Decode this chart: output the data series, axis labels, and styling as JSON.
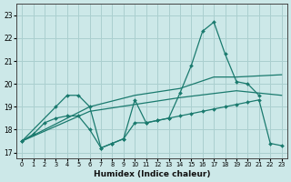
{
  "bg_color": "#cce8e8",
  "grid_color": "#aacfcf",
  "line_color": "#1a7a6e",
  "xlabel": "Humidex (Indice chaleur)",
  "xlim": [
    -0.5,
    23.5
  ],
  "ylim": [
    16.75,
    23.5
  ],
  "yticks": [
    17,
    18,
    19,
    20,
    21,
    22,
    23
  ],
  "xticks": [
    0,
    1,
    2,
    3,
    4,
    5,
    6,
    7,
    8,
    9,
    10,
    11,
    12,
    13,
    14,
    15,
    16,
    17,
    18,
    19,
    20,
    21,
    22,
    23
  ],
  "line1_x": [
    0,
    1,
    2,
    3,
    4,
    5,
    6,
    7,
    8,
    9,
    10,
    11,
    12,
    13,
    14,
    15,
    16,
    17,
    18,
    19,
    20,
    21,
    22,
    23
  ],
  "line1_y": [
    17.5,
    17.8,
    18.3,
    18.5,
    18.6,
    18.6,
    18.0,
    17.2,
    17.4,
    17.6,
    18.3,
    18.3,
    18.4,
    18.5,
    18.6,
    18.7,
    18.8,
    18.9,
    19.0,
    19.1,
    19.2,
    19.3,
    17.4,
    17.3
  ],
  "line2_x": [
    0,
    3,
    4,
    5,
    6,
    7,
    8,
    9,
    10,
    11,
    12,
    13,
    14,
    15,
    16,
    17,
    18,
    19,
    20,
    21
  ],
  "line2_y": [
    17.5,
    19.0,
    19.5,
    19.5,
    19.0,
    17.2,
    17.4,
    17.6,
    19.3,
    18.3,
    18.4,
    18.5,
    19.6,
    20.8,
    22.3,
    22.7,
    21.3,
    20.1,
    20.0,
    19.5
  ],
  "line3_x": [
    0,
    6,
    10,
    14,
    19,
    23
  ],
  "line3_y": [
    17.5,
    18.8,
    19.1,
    19.4,
    19.7,
    19.5
  ],
  "line4_x": [
    0,
    6,
    10,
    14,
    17,
    19,
    23
  ],
  "line4_y": [
    17.5,
    19.0,
    19.5,
    19.8,
    20.3,
    20.3,
    20.4
  ]
}
